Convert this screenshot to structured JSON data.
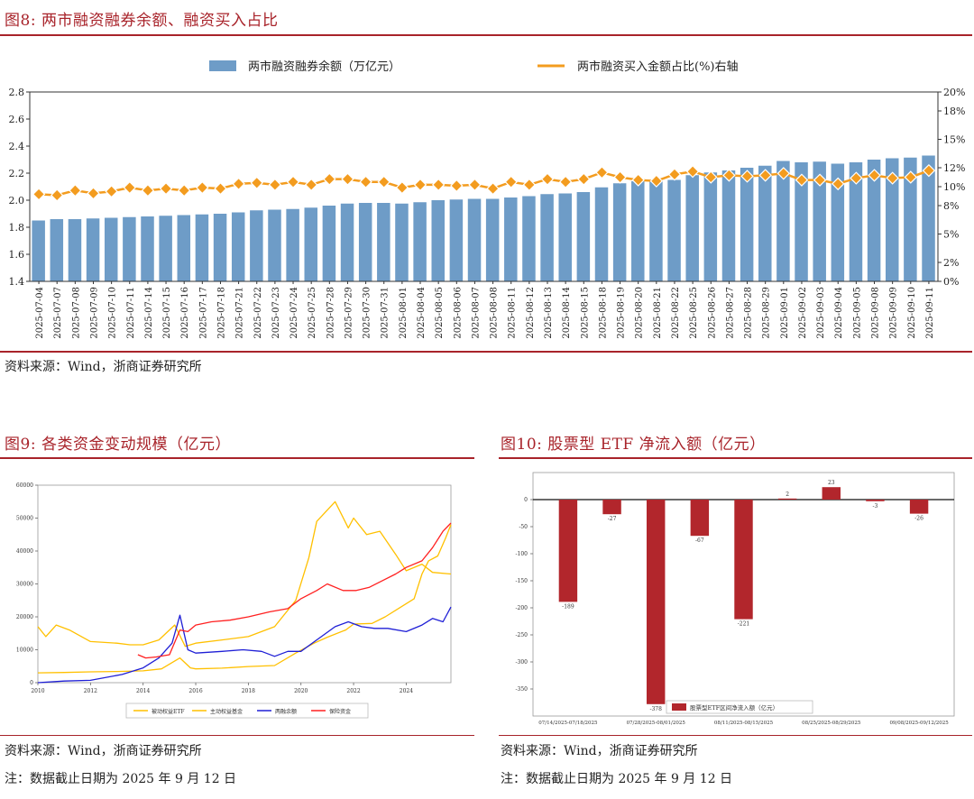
{
  "fig8": {
    "title": "图8:  两市融资融券余额、融资买入占比",
    "source": "资料来源：Wind，浙商证券研究所",
    "chart_data": {
      "type": "bar+line",
      "legend": {
        "bar": "两市融资融券余额（万亿元）",
        "line": "两市融资买入金额占比(%)右轴"
      },
      "left_axis": {
        "ylim": [
          1.4,
          2.8
        ],
        "ticks": [
          "1.4",
          "1.6",
          "1.8",
          "2.0",
          "2.2",
          "2.4",
          "2.6",
          "2.8"
        ]
      },
      "right_axis": {
        "ylim": [
          0,
          20
        ],
        "ticks": [
          "0%",
          "2%",
          "5%",
          "8%",
          "10%",
          "12%",
          "15%",
          "18%",
          "20%"
        ]
      },
      "categories": [
        "2025-07-04",
        "2025-07-07",
        "2025-07-08",
        "2025-07-09",
        "2025-07-10",
        "2025-07-11",
        "2025-07-14",
        "2025-07-15",
        "2025-07-16",
        "2025-07-17",
        "2025-07-18",
        "2025-07-21",
        "2025-07-22",
        "2025-07-23",
        "2025-07-24",
        "2025-07-25",
        "2025-07-28",
        "2025-07-29",
        "2025-07-30",
        "2025-07-31",
        "2025-08-01",
        "2025-08-04",
        "2025-08-05",
        "2025-08-06",
        "2025-08-07",
        "2025-08-08",
        "2025-08-11",
        "2025-08-12",
        "2025-08-13",
        "2025-08-14",
        "2025-08-15",
        "2025-08-18",
        "2025-08-19",
        "2025-08-20",
        "2025-08-21",
        "2025-08-22",
        "2025-08-25",
        "2025-08-26",
        "2025-08-27",
        "2025-08-28",
        "2025-08-29",
        "2025-09-01",
        "2025-09-02",
        "2025-09-03",
        "2025-09-04",
        "2025-09-05",
        "2025-09-08",
        "2025-09-09",
        "2025-09-10",
        "2025-09-11"
      ],
      "balance": [
        1.85,
        1.86,
        1.86,
        1.865,
        1.87,
        1.875,
        1.88,
        1.885,
        1.89,
        1.895,
        1.9,
        1.91,
        1.925,
        1.93,
        1.935,
        1.945,
        1.96,
        1.975,
        1.98,
        1.98,
        1.975,
        1.985,
        2.0,
        2.005,
        2.01,
        2.01,
        2.02,
        2.03,
        2.045,
        2.05,
        2.06,
        2.095,
        2.125,
        2.14,
        2.145,
        2.15,
        2.185,
        2.205,
        2.22,
        2.24,
        2.255,
        2.29,
        2.28,
        2.285,
        2.27,
        2.28,
        2.3,
        2.31,
        2.315,
        2.33
      ],
      "ratio": [
        9.2,
        9.1,
        9.6,
        9.3,
        9.5,
        9.9,
        9.6,
        9.8,
        9.6,
        9.9,
        9.8,
        10.3,
        10.4,
        10.2,
        10.5,
        10.2,
        10.8,
        10.8,
        10.5,
        10.5,
        9.9,
        10.2,
        10.2,
        10.1,
        10.2,
        9.8,
        10.5,
        10.2,
        10.8,
        10.5,
        10.8,
        11.5,
        11.0,
        10.7,
        10.6,
        11.3,
        11.6,
        11.0,
        11.2,
        11.1,
        11.2,
        11.4,
        10.7,
        10.7,
        10.3,
        10.9,
        11.2,
        10.9,
        11.0,
        11.7
      ]
    }
  },
  "fig9": {
    "title": "图9:  各类资金变动规模（亿元）",
    "source": "资料来源：Wind，浙商证券研究所",
    "footnote": "注：数据截止日期为 2025 年 9 月 12 日",
    "chart_data": {
      "type": "line",
      "ylim": [
        0,
        60000
      ],
      "y_ticks": [
        "0",
        "10000",
        "20000",
        "30000",
        "40000",
        "50000",
        "60000"
      ],
      "x_ticks": [
        "2010",
        "2012",
        "2014",
        "2016",
        "2018",
        "2020",
        "2022",
        "2024"
      ],
      "x_range": [
        2010,
        2025.7
      ],
      "series": [
        {
          "name": "被动权益ETF",
          "color": "#ffc000",
          "points": [
            [
              2010,
              3000
            ],
            [
              2011,
              3100
            ],
            [
              2012,
              3300
            ],
            [
              2013,
              3400
            ],
            [
              2014,
              3600
            ],
            [
              2014.7,
              4200
            ],
            [
              2015.4,
              7500
            ],
            [
              2015.8,
              4500
            ],
            [
              2016,
              4200
            ],
            [
              2017,
              4400
            ],
            [
              2018,
              4900
            ],
            [
              2019,
              5200
            ],
            [
              2019.8,
              9000
            ],
            [
              2020.5,
              12000
            ],
            [
              2021,
              13800
            ],
            [
              2021.7,
              16000
            ],
            [
              2022,
              17800
            ],
            [
              2022.7,
              18000
            ],
            [
              2023.2,
              20000
            ],
            [
              2023.8,
              23000
            ],
            [
              2024.3,
              25500
            ],
            [
              2024.6,
              33000
            ],
            [
              2024.85,
              37000
            ],
            [
              2025.2,
              38500
            ],
            [
              2025.5,
              44000
            ],
            [
              2025.7,
              48000
            ]
          ]
        },
        {
          "name": "主动权益基金",
          "color": "#ffc000",
          "points": [
            [
              2010,
              17000
            ],
            [
              2010.3,
              14000
            ],
            [
              2010.7,
              17500
            ],
            [
              2011.2,
              16000
            ],
            [
              2012,
              12500
            ],
            [
              2013,
              12000
            ],
            [
              2013.5,
              11500
            ],
            [
              2014,
              11500
            ],
            [
              2014.6,
              13000
            ],
            [
              2015.2,
              17500
            ],
            [
              2015.6,
              11000
            ],
            [
              2016,
              12000
            ],
            [
              2017,
              13000
            ],
            [
              2018,
              14000
            ],
            [
              2019,
              17000
            ],
            [
              2019.8,
              25000
            ],
            [
              2020.3,
              38000
            ],
            [
              2020.6,
              49000
            ],
            [
              2021.3,
              55000
            ],
            [
              2021.8,
              47000
            ],
            [
              2022,
              50000
            ],
            [
              2022.5,
              45000
            ],
            [
              2023,
              46000
            ],
            [
              2023.6,
              39000
            ],
            [
              2024,
              34000
            ],
            [
              2024.6,
              36000
            ],
            [
              2025,
              33500
            ],
            [
              2025.7,
              33000
            ]
          ]
        },
        {
          "name": "两融余额",
          "color": "#1f1fd6",
          "points": [
            [
              2010,
              0
            ],
            [
              2011,
              500
            ],
            [
              2012,
              700
            ],
            [
              2013.2,
              2500
            ],
            [
              2014,
              4500
            ],
            [
              2014.6,
              7500
            ],
            [
              2015.1,
              12000
            ],
            [
              2015.4,
              20500
            ],
            [
              2015.7,
              10000
            ],
            [
              2016,
              9000
            ],
            [
              2017,
              9500
            ],
            [
              2017.8,
              10000
            ],
            [
              2018.5,
              9500
            ],
            [
              2019,
              8000
            ],
            [
              2019.5,
              9500
            ],
            [
              2020,
              9500
            ],
            [
              2020.6,
              13000
            ],
            [
              2021.3,
              17000
            ],
            [
              2021.8,
              18500
            ],
            [
              2022.3,
              17000
            ],
            [
              2022.8,
              16500
            ],
            [
              2023.3,
              16500
            ],
            [
              2024,
              15500
            ],
            [
              2024.6,
              17500
            ],
            [
              2025,
              19500
            ],
            [
              2025.4,
              18500
            ],
            [
              2025.7,
              23000
            ]
          ]
        },
        {
          "name": "保险资金",
          "color": "#ff2020",
          "points": [
            [
              2013.8,
              8500
            ],
            [
              2014.1,
              7500
            ],
            [
              2014.5,
              7800
            ],
            [
              2015,
              8500
            ],
            [
              2015.4,
              16000
            ],
            [
              2015.7,
              15500
            ],
            [
              2016,
              17500
            ],
            [
              2016.6,
              18500
            ],
            [
              2017.3,
              19000
            ],
            [
              2018,
              20000
            ],
            [
              2018.8,
              21500
            ],
            [
              2019.5,
              22500
            ],
            [
              2020,
              25500
            ],
            [
              2020.6,
              28000
            ],
            [
              2021,
              30000
            ],
            [
              2021.6,
              28000
            ],
            [
              2022.1,
              28000
            ],
            [
              2022.6,
              29000
            ],
            [
              2023.1,
              31000
            ],
            [
              2023.6,
              33000
            ],
            [
              2024,
              35000
            ],
            [
              2024.6,
              37000
            ],
            [
              2025,
              41000
            ],
            [
              2025.4,
              46000
            ],
            [
              2025.7,
              48500
            ]
          ]
        }
      ]
    }
  },
  "fig10": {
    "title": "图10:  股票型 ETF 净流入额（亿元）",
    "source": "资料来源：Wind，浙商证券研究所",
    "footnote": "注：数据截止日期为 2025 年 9 月 12 日",
    "chart_data": {
      "type": "bar",
      "legend": "股票型ETF区间净流入额（亿元）",
      "ylim": [
        -400,
        50
      ],
      "y_ticks": [
        "0",
        "-50",
        "-100",
        "-150",
        "-200",
        "-250",
        "-300",
        "-350"
      ],
      "x_ticks": [
        "07/14/2025-07/18/2025",
        "07/28/2025-08/01/2025",
        "08/11/2025-08/15/2025",
        "08/25/2025-08/29/2025",
        "09/08/2025-09/12/2025"
      ],
      "values": [
        -189,
        -27,
        -378,
        -67,
        -221,
        2,
        23,
        -3,
        -26
      ],
      "labels": [
        "-189",
        "-27",
        "-378",
        "-67",
        "-221",
        "2",
        "23",
        "-3",
        "-26"
      ],
      "color": "#b2262c"
    }
  }
}
